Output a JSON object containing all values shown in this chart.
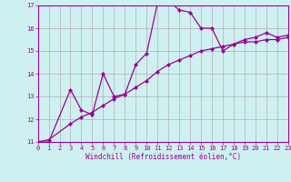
{
  "bg_color": "#cff0f0",
  "grid_color": "#b0b0b0",
  "line_color": "#990099",
  "line1_x": [
    0,
    1,
    3,
    4,
    5,
    6,
    7,
    8,
    9,
    10,
    11,
    12,
    13,
    14,
    15,
    16,
    17,
    18,
    19,
    20,
    21,
    22,
    23
  ],
  "line1_y": [
    11.0,
    11.0,
    13.3,
    12.4,
    12.2,
    14.0,
    13.0,
    13.1,
    14.4,
    14.9,
    17.1,
    17.2,
    16.8,
    16.7,
    16.0,
    16.0,
    15.0,
    15.3,
    15.5,
    15.6,
    15.8,
    15.6,
    15.7
  ],
  "line2_x": [
    0,
    1,
    3,
    4,
    5,
    6,
    7,
    8,
    9,
    10,
    11,
    12,
    13,
    14,
    15,
    16,
    17,
    18,
    19,
    20,
    21,
    22,
    23
  ],
  "line2_y": [
    11.0,
    11.1,
    11.8,
    12.1,
    12.3,
    12.6,
    12.9,
    13.1,
    13.4,
    13.7,
    14.1,
    14.4,
    14.6,
    14.8,
    15.0,
    15.1,
    15.2,
    15.3,
    15.4,
    15.4,
    15.5,
    15.5,
    15.6
  ],
  "xlim": [
    0,
    23
  ],
  "ylim": [
    11,
    17
  ],
  "xticks": [
    0,
    1,
    2,
    3,
    4,
    5,
    6,
    7,
    8,
    9,
    10,
    11,
    12,
    13,
    14,
    15,
    16,
    17,
    18,
    19,
    20,
    21,
    22,
    23
  ],
  "yticks": [
    11,
    12,
    13,
    14,
    15,
    16,
    17
  ],
  "xlabel": "Windchill (Refroidissement éolien,°C)",
  "marker": "D",
  "markersize": 2.0,
  "linewidth": 0.9,
  "tick_fontsize": 5.0,
  "label_fontsize": 5.5
}
